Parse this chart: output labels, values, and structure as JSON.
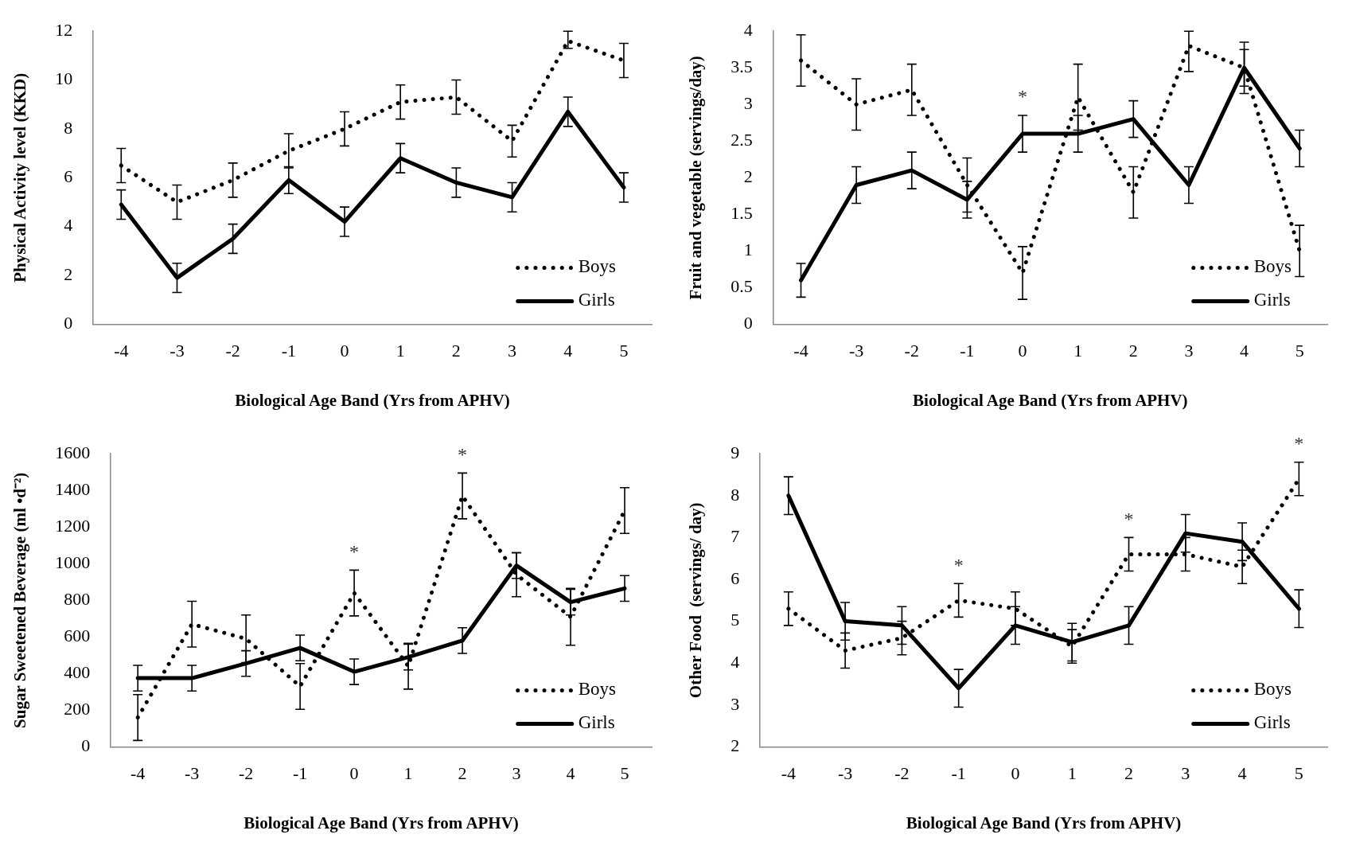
{
  "chart_data": [
    {
      "type": "line",
      "categories": [
        "-4",
        "-3",
        "-2",
        "-1",
        "0",
        "1",
        "2",
        "3",
        "4",
        "5"
      ],
      "xlabel": "Biological Age Band (Yrs from APHV)",
      "ylabel": "Physical Activity level (KKD)",
      "ylim": [
        0,
        12
      ],
      "yticks": [
        0,
        2,
        4,
        6,
        8,
        10,
        12
      ],
      "grid": false,
      "legend": "bottom right",
      "marker": "none",
      "series": [
        {
          "name": "Boys",
          "color": "#000000",
          "line_style": "dotted",
          "values": [
            6.5,
            5.0,
            5.9,
            7.1,
            8.0,
            9.1,
            9.3,
            7.5,
            11.6,
            10.8
          ],
          "errors": [
            0.7,
            0.7,
            0.7,
            0.7,
            0.7,
            0.7,
            0.7,
            0.65,
            [
              11.3,
              12
            ],
            0.7
          ]
        },
        {
          "name": "Girls",
          "color": "#000000",
          "line_style": "solid",
          "values": [
            4.9,
            1.9,
            3.5,
            5.9,
            4.2,
            6.8,
            5.8,
            5.2,
            8.7,
            5.6
          ],
          "errors": [
            0.6,
            0.6,
            0.6,
            0.55,
            0.6,
            0.6,
            0.6,
            0.6,
            0.6,
            0.6
          ]
        }
      ]
    },
    {
      "type": "line",
      "categories": [
        "-4",
        "-3",
        "-2",
        "-1",
        "0",
        "1",
        "2",
        "3",
        "4",
        "5"
      ],
      "xlabel": "Biological Age Band (Yrs from APHV)",
      "ylabel": "Fruit and vegetable (servings/day)",
      "ylim": [
        0,
        4
      ],
      "yticks": [
        0,
        0.5,
        1,
        1.5,
        2,
        2.5,
        3,
        3.5,
        4
      ],
      "grid": false,
      "legend": "bottom right",
      "marker": "none",
      "annotations": [
        {
          "text": "*",
          "x": "0",
          "y": 2.6
        }
      ],
      "series": [
        {
          "name": "Boys",
          "color": "#000000",
          "line_style": "dotted",
          "values": [
            3.6,
            3.0,
            3.2,
            1.9,
            0.7,
            3.1,
            1.8,
            3.8,
            3.5,
            1.0
          ],
          "errors": [
            0.35,
            0.35,
            0.35,
            0.37,
            0.36,
            0.45,
            0.35,
            [
              3.45,
              4
            ],
            0.35,
            0.35
          ]
        },
        {
          "name": "Girls",
          "color": "#000000",
          "line_style": "solid",
          "values": [
            0.6,
            1.9,
            2.1,
            1.7,
            2.6,
            2.6,
            2.8,
            1.9,
            3.5,
            2.4
          ],
          "errors": [
            0.23,
            0.25,
            0.25,
            0.25,
            0.25,
            0.25,
            0.25,
            0.25,
            0.25,
            0.25
          ]
        }
      ]
    },
    {
      "type": "line",
      "categories": [
        "-4",
        "-3",
        "-2",
        "-1",
        "0",
        "1",
        "2",
        "3",
        "4",
        "5"
      ],
      "xlabel": "Biological Age Band (Yrs from APHV)",
      "ylabel": "Sugar Sweetened Beverage (ml •d⁻²)",
      "ylim": [
        0,
        1600
      ],
      "yticks": [
        0,
        200,
        400,
        600,
        800,
        1000,
        1200,
        1400,
        1600
      ],
      "grid": false,
      "legend": "bottom right",
      "marker": "none",
      "annotations": [
        {
          "text": "*",
          "x": "0",
          "y": 840
        },
        {
          "text": "*",
          "x": "2",
          "y": 1370
        }
      ],
      "series": [
        {
          "name": "Boys",
          "color": "#000000",
          "line_style": "dotted",
          "values": [
            160,
            670,
            590,
            330,
            840,
            440,
            1370,
            940,
            710,
            1290
          ],
          "errors": [
            125,
            125,
            130,
            125,
            125,
            125,
            125,
            120,
            155,
            125
          ]
        },
        {
          "name": "Girls",
          "color": "#000000",
          "line_style": "solid",
          "values": [
            375,
            375,
            455,
            540,
            410,
            490,
            580,
            990,
            790,
            865
          ],
          "errors": [
            70,
            70,
            70,
            70,
            70,
            70,
            70,
            70,
            70,
            70
          ]
        }
      ]
    },
    {
      "type": "line",
      "categories": [
        "-4",
        "-3",
        "-2",
        "-1",
        "0",
        "1",
        "2",
        "3",
        "4",
        "5"
      ],
      "xlabel": "Biological Age Band (Yrs from APHV)",
      "ylabel": "Other Food  (servings/ day)",
      "ylim": [
        2,
        9
      ],
      "yticks": [
        2,
        3,
        4,
        5,
        6,
        7,
        8,
        9
      ],
      "grid": false,
      "legend": "bottom right",
      "marker": "none",
      "annotations": [
        {
          "text": "*",
          "x": "-1",
          "y": 5.5
        },
        {
          "text": "*",
          "x": "2",
          "y": 6.6
        },
        {
          "text": "*",
          "x": "5",
          "y": 8.4
        }
      ],
      "series": [
        {
          "name": "Boys",
          "color": "#000000",
          "line_style": "dotted",
          "values": [
            5.3,
            4.3,
            4.6,
            5.5,
            5.3,
            4.4,
            6.6,
            6.6,
            6.3,
            8.4
          ],
          "errors": [
            0.4,
            0.42,
            0.4,
            0.4,
            0.4,
            0.4,
            0.4,
            0.4,
            0.4,
            0.4
          ]
        },
        {
          "name": "Girls",
          "color": "#000000",
          "line_style": "solid",
          "values": [
            8.0,
            5.0,
            4.9,
            3.4,
            4.9,
            4.5,
            4.9,
            7.1,
            6.9,
            5.3
          ],
          "errors": [
            0.45,
            0.45,
            0.45,
            0.45,
            0.45,
            0.45,
            0.45,
            0.45,
            0.45,
            0.45
          ]
        }
      ]
    }
  ]
}
